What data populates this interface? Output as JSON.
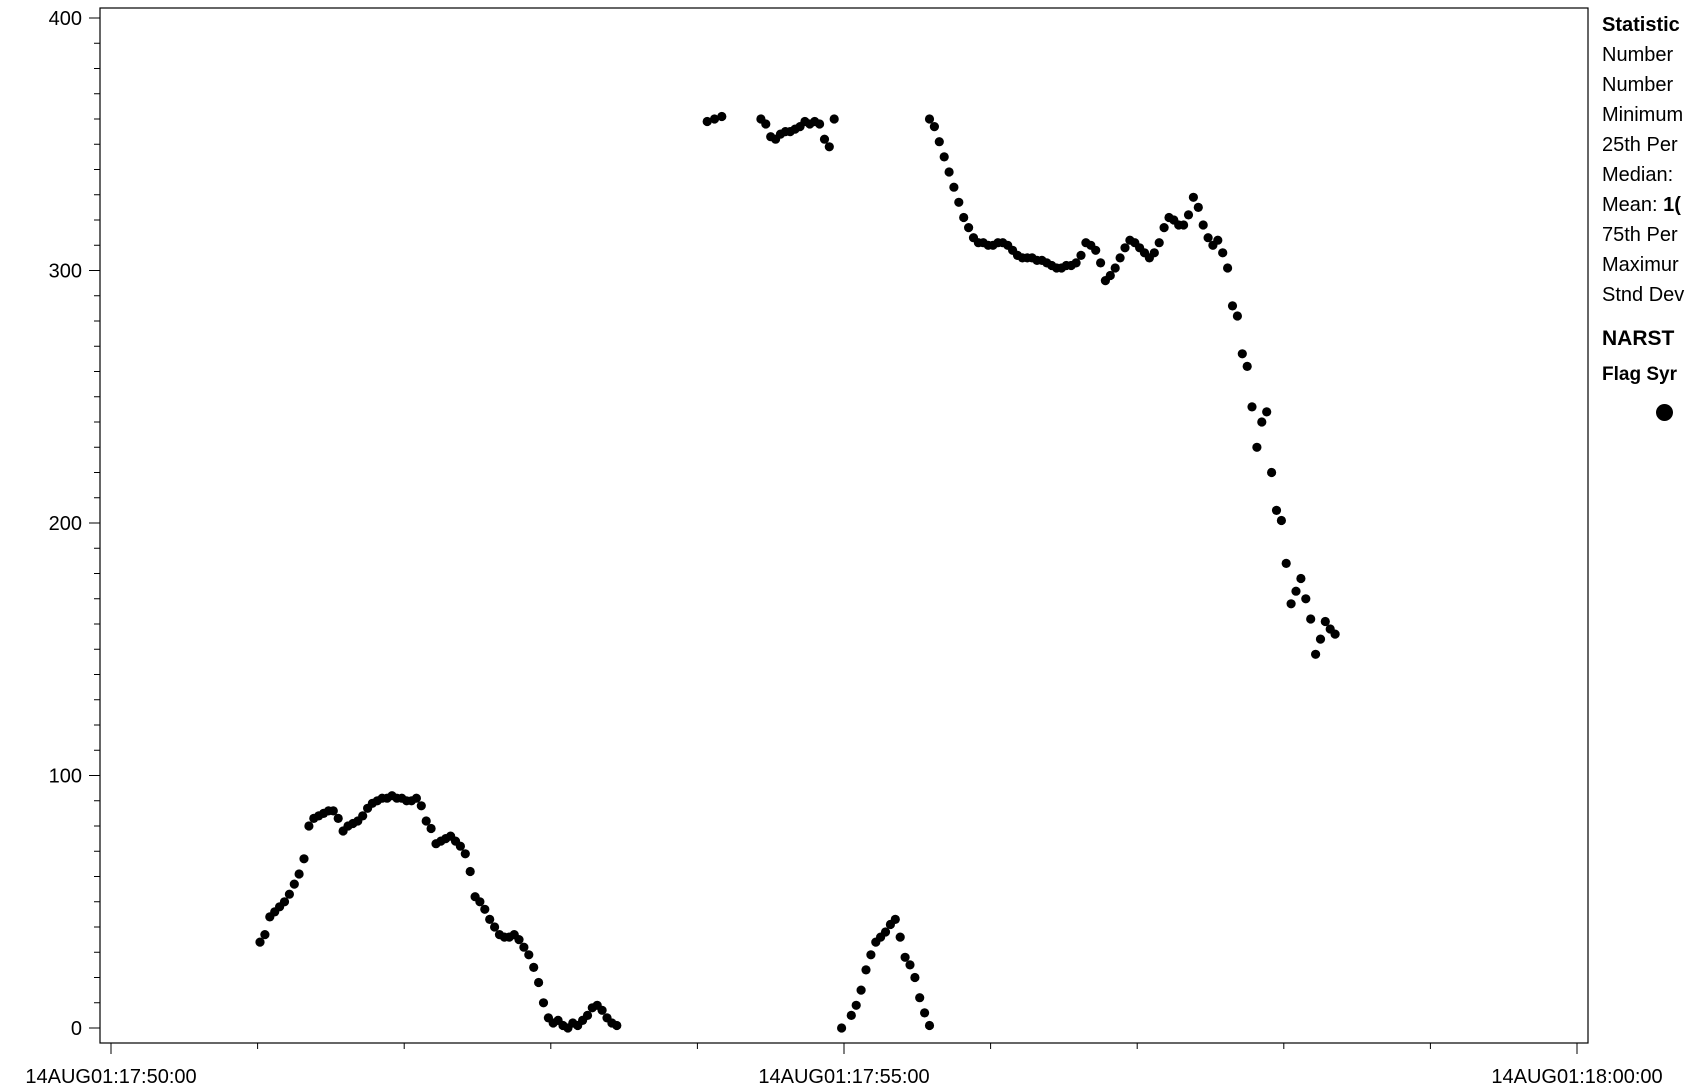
{
  "chart_data": {
    "type": "scatter",
    "title": "",
    "xlabel": "",
    "ylabel": "",
    "xlim": [
      "14AUG01:17:50:00",
      "14AUG01:18:00:00"
    ],
    "ylim": [
      0,
      400
    ],
    "x_tick_labels": [
      "14AUG01:17:50:00",
      "14AUG01:17:55:00",
      "14AUG01:18:00:00"
    ],
    "y_tick_labels": [
      "0",
      "100",
      "200",
      "300",
      "400"
    ],
    "marker": "filled-circle",
    "series": [
      {
        "points": [
          [
            "14AUG01:17:51:01",
            34
          ],
          [
            "14AUG01:17:51:03",
            37
          ],
          [
            "14AUG01:17:51:05",
            44
          ],
          [
            "14AUG01:17:51:07",
            46
          ],
          [
            "14AUG01:17:51:09",
            48
          ],
          [
            "14AUG01:17:51:11",
            50
          ],
          [
            "14AUG01:17:51:13",
            53
          ],
          [
            "14AUG01:17:51:15",
            57
          ],
          [
            "14AUG01:17:51:17",
            61
          ],
          [
            "14AUG01:17:51:19",
            67
          ],
          [
            "14AUG01:17:51:21",
            80
          ],
          [
            "14AUG01:17:51:23",
            83
          ],
          [
            "14AUG01:17:51:25",
            84
          ],
          [
            "14AUG01:17:51:27",
            85
          ],
          [
            "14AUG01:17:51:29",
            86
          ],
          [
            "14AUG01:17:51:31",
            86
          ],
          [
            "14AUG01:17:51:33",
            83
          ],
          [
            "14AUG01:17:51:35",
            78
          ],
          [
            "14AUG01:17:51:37",
            80
          ],
          [
            "14AUG01:17:51:39",
            81
          ],
          [
            "14AUG01:17:51:41",
            82
          ],
          [
            "14AUG01:17:51:43",
            84
          ],
          [
            "14AUG01:17:51:45",
            87
          ],
          [
            "14AUG01:17:51:47",
            89
          ],
          [
            "14AUG01:17:51:49",
            90
          ],
          [
            "14AUG01:17:51:51",
            91
          ],
          [
            "14AUG01:17:51:53",
            91
          ],
          [
            "14AUG01:17:51:55",
            92
          ],
          [
            "14AUG01:17:51:57",
            91
          ],
          [
            "14AUG01:17:51:59",
            91
          ],
          [
            "14AUG01:17:52:01",
            90
          ],
          [
            "14AUG01:17:52:03",
            90
          ],
          [
            "14AUG01:17:52:05",
            91
          ],
          [
            "14AUG01:17:52:07",
            88
          ],
          [
            "14AUG01:17:52:09",
            82
          ],
          [
            "14AUG01:17:52:11",
            79
          ],
          [
            "14AUG01:17:52:13",
            73
          ],
          [
            "14AUG01:17:52:15",
            74
          ],
          [
            "14AUG01:17:52:17",
            75
          ],
          [
            "14AUG01:17:52:19",
            76
          ],
          [
            "14AUG01:17:52:21",
            74
          ],
          [
            "14AUG01:17:52:23",
            72
          ],
          [
            "14AUG01:17:52:25",
            69
          ],
          [
            "14AUG01:17:52:27",
            62
          ],
          [
            "14AUG01:17:52:29",
            52
          ],
          [
            "14AUG01:17:52:31",
            50
          ],
          [
            "14AUG01:17:52:33",
            47
          ],
          [
            "14AUG01:17:52:35",
            43
          ],
          [
            "14AUG01:17:52:37",
            40
          ],
          [
            "14AUG01:17:52:39",
            37
          ],
          [
            "14AUG01:17:52:41",
            36
          ],
          [
            "14AUG01:17:52:43",
            36
          ],
          [
            "14AUG01:17:52:45",
            37
          ],
          [
            "14AUG01:17:52:47",
            35
          ],
          [
            "14AUG01:17:52:49",
            32
          ],
          [
            "14AUG01:17:52:51",
            29
          ],
          [
            "14AUG01:17:52:53",
            24
          ],
          [
            "14AUG01:17:52:55",
            18
          ],
          [
            "14AUG01:17:52:57",
            10
          ],
          [
            "14AUG01:17:52:59",
            4
          ],
          [
            "14AUG01:17:53:01",
            2
          ],
          [
            "14AUG01:17:53:03",
            3
          ],
          [
            "14AUG01:17:53:05",
            1
          ],
          [
            "14AUG01:17:53:07",
            0
          ],
          [
            "14AUG01:17:53:09",
            2
          ],
          [
            "14AUG01:17:53:11",
            1
          ],
          [
            "14AUG01:17:53:13",
            3
          ],
          [
            "14AUG01:17:53:15",
            5
          ],
          [
            "14AUG01:17:53:17",
            8
          ],
          [
            "14AUG01:17:53:19",
            9
          ],
          [
            "14AUG01:17:53:21",
            7
          ],
          [
            "14AUG01:17:53:23",
            4
          ],
          [
            "14AUG01:17:53:25",
            2
          ],
          [
            "14AUG01:17:53:27",
            1
          ],
          [
            "14AUG01:17:54:04",
            359
          ],
          [
            "14AUG01:17:54:07",
            360
          ],
          [
            "14AUG01:17:54:10",
            361
          ],
          [
            "14AUG01:17:54:26",
            360
          ],
          [
            "14AUG01:17:54:28",
            358
          ],
          [
            "14AUG01:17:54:30",
            353
          ],
          [
            "14AUG01:17:54:32",
            352
          ],
          [
            "14AUG01:17:54:34",
            354
          ],
          [
            "14AUG01:17:54:36",
            355
          ],
          [
            "14AUG01:17:54:38",
            355
          ],
          [
            "14AUG01:17:54:40",
            356
          ],
          [
            "14AUG01:17:54:42",
            357
          ],
          [
            "14AUG01:17:54:44",
            359
          ],
          [
            "14AUG01:17:54:46",
            358
          ],
          [
            "14AUG01:17:54:48",
            359
          ],
          [
            "14AUG01:17:54:50",
            358
          ],
          [
            "14AUG01:17:54:52",
            352
          ],
          [
            "14AUG01:17:54:54",
            349
          ],
          [
            "14AUG01:17:54:56",
            360
          ],
          [
            "14AUG01:17:54:59",
            0
          ],
          [
            "14AUG01:17:55:03",
            5
          ],
          [
            "14AUG01:17:55:05",
            9
          ],
          [
            "14AUG01:17:55:07",
            15
          ],
          [
            "14AUG01:17:55:09",
            23
          ],
          [
            "14AUG01:17:55:11",
            29
          ],
          [
            "14AUG01:17:55:13",
            34
          ],
          [
            "14AUG01:17:55:15",
            36
          ],
          [
            "14AUG01:17:55:17",
            38
          ],
          [
            "14AUG01:17:55:19",
            41
          ],
          [
            "14AUG01:17:55:21",
            43
          ],
          [
            "14AUG01:17:55:23",
            36
          ],
          [
            "14AUG01:17:55:25",
            28
          ],
          [
            "14AUG01:17:55:27",
            25
          ],
          [
            "14AUG01:17:55:29",
            20
          ],
          [
            "14AUG01:17:55:31",
            12
          ],
          [
            "14AUG01:17:55:33",
            6
          ],
          [
            "14AUG01:17:55:35",
            1
          ],
          [
            "14AUG01:17:55:35",
            360
          ],
          [
            "14AUG01:17:55:37",
            357
          ],
          [
            "14AUG01:17:55:39",
            351
          ],
          [
            "14AUG01:17:55:41",
            345
          ],
          [
            "14AUG01:17:55:43",
            339
          ],
          [
            "14AUG01:17:55:45",
            333
          ],
          [
            "14AUG01:17:55:47",
            327
          ],
          [
            "14AUG01:17:55:49",
            321
          ],
          [
            "14AUG01:17:55:51",
            317
          ],
          [
            "14AUG01:17:55:53",
            313
          ],
          [
            "14AUG01:17:55:55",
            311
          ],
          [
            "14AUG01:17:55:57",
            311
          ],
          [
            "14AUG01:17:55:59",
            310
          ],
          [
            "14AUG01:17:56:01",
            310
          ],
          [
            "14AUG01:17:56:03",
            311
          ],
          [
            "14AUG01:17:56:05",
            311
          ],
          [
            "14AUG01:17:56:07",
            310
          ],
          [
            "14AUG01:17:56:09",
            308
          ],
          [
            "14AUG01:17:56:11",
            306
          ],
          [
            "14AUG01:17:56:13",
            305
          ],
          [
            "14AUG01:17:56:15",
            305
          ],
          [
            "14AUG01:17:56:17",
            305
          ],
          [
            "14AUG01:17:56:19",
            304
          ],
          [
            "14AUG01:17:56:21",
            304
          ],
          [
            "14AUG01:17:56:23",
            303
          ],
          [
            "14AUG01:17:56:25",
            302
          ],
          [
            "14AUG01:17:56:27",
            301
          ],
          [
            "14AUG01:17:56:29",
            301
          ],
          [
            "14AUG01:17:56:31",
            302
          ],
          [
            "14AUG01:17:56:33",
            302
          ],
          [
            "14AUG01:17:56:35",
            303
          ],
          [
            "14AUG01:17:56:37",
            306
          ],
          [
            "14AUG01:17:56:39",
            311
          ],
          [
            "14AUG01:17:56:41",
            310
          ],
          [
            "14AUG01:17:56:43",
            308
          ],
          [
            "14AUG01:17:56:45",
            303
          ],
          [
            "14AUG01:17:56:47",
            296
          ],
          [
            "14AUG01:17:56:49",
            298
          ],
          [
            "14AUG01:17:56:51",
            301
          ],
          [
            "14AUG01:17:56:53",
            305
          ],
          [
            "14AUG01:17:56:55",
            309
          ],
          [
            "14AUG01:17:56:57",
            312
          ],
          [
            "14AUG01:17:56:59",
            311
          ],
          [
            "14AUG01:17:57:01",
            309
          ],
          [
            "14AUG01:17:57:03",
            307
          ],
          [
            "14AUG01:17:57:05",
            305
          ],
          [
            "14AUG01:17:57:07",
            307
          ],
          [
            "14AUG01:17:57:09",
            311
          ],
          [
            "14AUG01:17:57:11",
            317
          ],
          [
            "14AUG01:17:57:13",
            321
          ],
          [
            "14AUG01:17:57:15",
            320
          ],
          [
            "14AUG01:17:57:17",
            318
          ],
          [
            "14AUG01:17:57:19",
            318
          ],
          [
            "14AUG01:17:57:21",
            322
          ],
          [
            "14AUG01:17:57:23",
            329
          ],
          [
            "14AUG01:17:57:25",
            325
          ],
          [
            "14AUG01:17:57:27",
            318
          ],
          [
            "14AUG01:17:57:29",
            313
          ],
          [
            "14AUG01:17:57:31",
            310
          ],
          [
            "14AUG01:17:57:33",
            312
          ],
          [
            "14AUG01:17:57:35",
            307
          ],
          [
            "14AUG01:17:57:37",
            301
          ],
          [
            "14AUG01:17:57:39",
            286
          ],
          [
            "14AUG01:17:57:41",
            282
          ],
          [
            "14AUG01:17:57:43",
            267
          ],
          [
            "14AUG01:17:57:45",
            262
          ],
          [
            "14AUG01:17:57:47",
            246
          ],
          [
            "14AUG01:17:57:49",
            230
          ],
          [
            "14AUG01:17:57:51",
            240
          ],
          [
            "14AUG01:17:57:53",
            244
          ],
          [
            "14AUG01:17:57:55",
            220
          ],
          [
            "14AUG01:17:57:57",
            205
          ],
          [
            "14AUG01:17:57:59",
            201
          ],
          [
            "14AUG01:17:58:01",
            184
          ],
          [
            "14AUG01:17:58:03",
            168
          ],
          [
            "14AUG01:17:58:05",
            173
          ],
          [
            "14AUG01:17:58:07",
            178
          ],
          [
            "14AUG01:17:58:09",
            170
          ],
          [
            "14AUG01:17:58:11",
            162
          ],
          [
            "14AUG01:17:58:13",
            148
          ],
          [
            "14AUG01:17:58:15",
            154
          ],
          [
            "14AUG01:17:58:17",
            161
          ],
          [
            "14AUG01:17:58:19",
            158
          ],
          [
            "14AUG01:17:58:21",
            156
          ]
        ]
      }
    ]
  },
  "stats_panel": {
    "title": "Statistic",
    "rows": [
      {
        "label": "Number",
        "value": ""
      },
      {
        "label": "Number",
        "value": ""
      },
      {
        "label": "Minimum",
        "value": ""
      },
      {
        "label": "25th Per",
        "value": ""
      },
      {
        "label": "Median:",
        "value": ""
      },
      {
        "label": "Mean:",
        "value": "1("
      },
      {
        "label": "75th Per",
        "value": ""
      },
      {
        "label": "Maximur",
        "value": ""
      },
      {
        "label": "Stnd Dev",
        "value": ""
      }
    ],
    "narst_title": "NARST",
    "flag_title": "Flag Syr",
    "flag_icon": "filled-circle-icon"
  }
}
